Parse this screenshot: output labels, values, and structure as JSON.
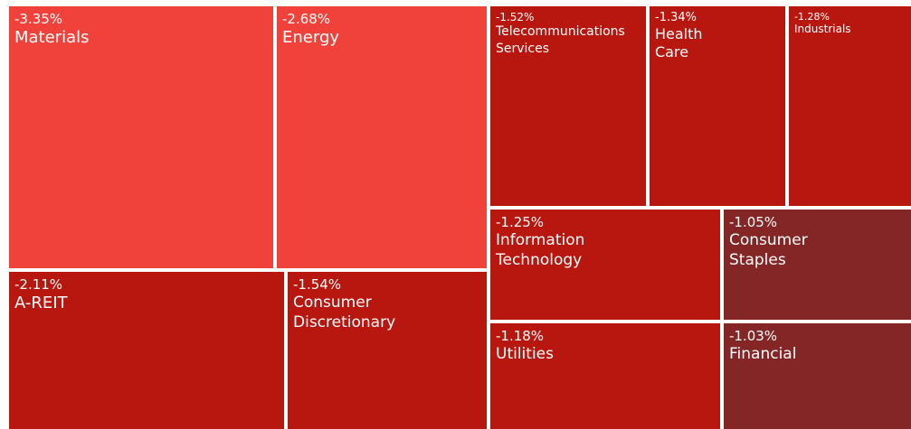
{
  "chart_data": {
    "type": "treemap",
    "categories": [
      "Materials",
      "Energy",
      "A-REIT",
      "Consumer Discretionary",
      "Telecommunications Services",
      "Health Care",
      "Industrials",
      "Information Technology",
      "Consumer Staples",
      "Utilities",
      "Financial"
    ],
    "values": [
      -3.35,
      -2.68,
      -2.11,
      -1.54,
      -1.52,
      -1.34,
      -1.28,
      -1.25,
      -1.05,
      -1.18,
      -1.03
    ],
    "value_labels": [
      "-3.35%",
      "-2.68%",
      "-2.11%",
      "-1.54%",
      "-1.52%",
      "-1.34%",
      "-1.28%",
      "-1.25%",
      "-1.05%",
      "-1.18%",
      "-1.03%"
    ],
    "colors": [
      "#f0423a",
      "#f0423a",
      "#b8170f",
      "#b8170f",
      "#b8170f",
      "#b8170f",
      "#b8170f",
      "#b8170f",
      "#832625",
      "#b8170f",
      "#832625"
    ]
  }
}
